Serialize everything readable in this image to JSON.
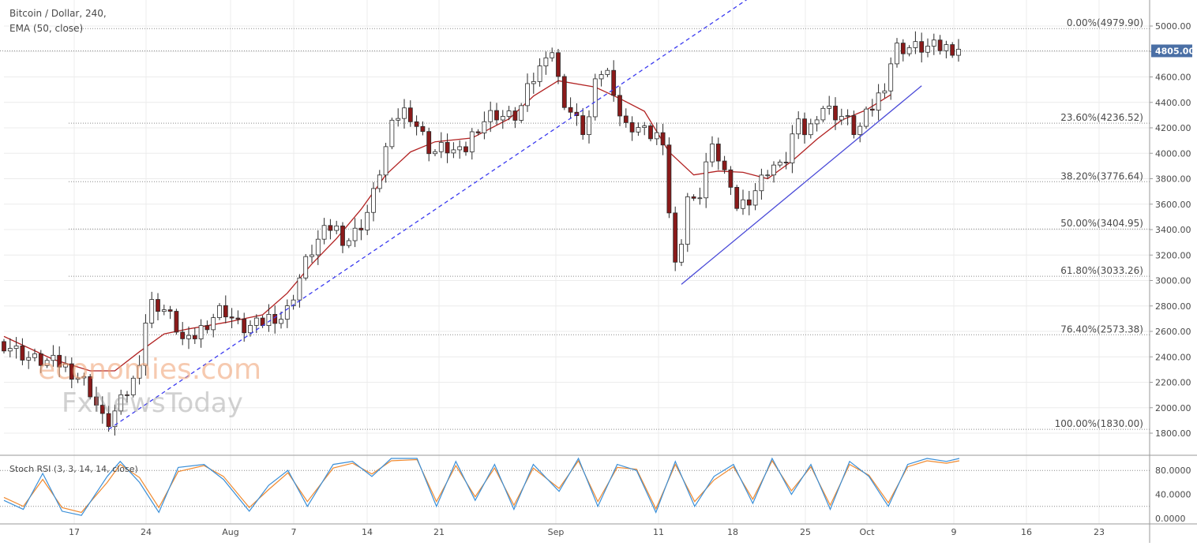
{
  "header": {
    "title": "Bitcoin / Dollar, 240,",
    "indicator": "EMA (50, close)"
  },
  "stoch_label": "Stoch RSI (3, 3, 14, 14, close)",
  "watermark": {
    "line1": "economies.com",
    "line2": "FxNewsToday"
  },
  "chart_data": {
    "type": "candlestick",
    "symbol": "Bitcoin / Dollar",
    "interval": "240",
    "price_axis": {
      "ticks": [
        5000,
        4800,
        4600,
        4400,
        4200,
        4000,
        3800,
        3600,
        3400,
        3200,
        3000,
        2800,
        2600,
        2400,
        2200,
        2000,
        1800
      ],
      "labels": [
        "5000.00",
        "4800.00",
        "4600.00",
        "4400.00",
        "4200.00",
        "4000.00",
        "3800.00",
        "3600.00",
        "3400.00",
        "3200.00",
        "3000.00",
        "2800.00",
        "2600.00",
        "2400.00",
        "2200.00",
        "2000.00",
        "1800.00"
      ],
      "range": [
        1700,
        5110
      ]
    },
    "time_axis": {
      "labels": [
        "17",
        "24",
        "Aug",
        "7",
        "14",
        "21",
        "Sep",
        "11",
        "18",
        "25",
        "Oct",
        "9",
        "16",
        "23"
      ]
    },
    "last_price": {
      "value": 4805,
      "label": "4805.00"
    },
    "fibonacci": [
      {
        "label": "0.00%(4979.90)",
        "price": 4979.9
      },
      {
        "label": "23.60%(4236.52)",
        "price": 4236.52
      },
      {
        "label": "38.20%(3776.64)",
        "price": 3776.64
      },
      {
        "label": "50.00%(3404.95)",
        "price": 3404.95
      },
      {
        "label": "61.80%(3033.26)",
        "price": 3033.26
      },
      {
        "label": "76.40%(2573.38)",
        "price": 2573.38
      },
      {
        "label": "100.00%(1830.00)",
        "price": 1830.0
      }
    ],
    "price_path": [
      [
        0,
        2520
      ],
      [
        5,
        2380
      ],
      [
        10,
        2340
      ],
      [
        14,
        2190
      ],
      [
        17,
        1850
      ],
      [
        19,
        2000
      ],
      [
        22,
        2250
      ],
      [
        24,
        2820
      ],
      [
        26,
        2800
      ],
      [
        28,
        2680
      ],
      [
        30,
        2480
      ],
      [
        33,
        2650
      ],
      [
        36,
        2790
      ],
      [
        39,
        2620
      ],
      [
        42,
        2650
      ],
      [
        44,
        2730
      ],
      [
        46,
        2700
      ],
      [
        48,
        2960
      ],
      [
        50,
        3200
      ],
      [
        52,
        3350
      ],
      [
        54,
        3440
      ],
      [
        56,
        3300
      ],
      [
        58,
        3400
      ],
      [
        60,
        3580
      ],
      [
        62,
        3960
      ],
      [
        64,
        4280
      ],
      [
        66,
        4350
      ],
      [
        68,
        4180
      ],
      [
        70,
        4000
      ],
      [
        72,
        4050
      ],
      [
        75,
        3980
      ],
      [
        77,
        4200
      ],
      [
        80,
        4320
      ],
      [
        82,
        4280
      ],
      [
        84,
        4300
      ],
      [
        86,
        4550
      ],
      [
        88,
        4700
      ],
      [
        89,
        4920
      ],
      [
        91,
        4450
      ],
      [
        93,
        4280
      ],
      [
        95,
        4150
      ],
      [
        97,
        4650
      ],
      [
        99,
        4620
      ],
      [
        101,
        4200
      ],
      [
        103,
        4220
      ],
      [
        105,
        4150
      ],
      [
        107,
        4150
      ],
      [
        108,
        3860
      ],
      [
        109,
        3250
      ],
      [
        110,
        2990
      ],
      [
        111,
        3700
      ],
      [
        113,
        3580
      ],
      [
        115,
        4050
      ],
      [
        117,
        3950
      ],
      [
        119,
        3580
      ],
      [
        121,
        3620
      ],
      [
        123,
        3750
      ],
      [
        125,
        3920
      ],
      [
        127,
        3870
      ],
      [
        129,
        4230
      ],
      [
        131,
        4150
      ],
      [
        133,
        4380
      ],
      [
        135,
        4320
      ],
      [
        137,
        4280
      ],
      [
        139,
        4150
      ],
      [
        140,
        4250
      ],
      [
        142,
        4400
      ],
      [
        144,
        4600
      ],
      [
        145,
        4830
      ]
    ],
    "ema50_path": [
      [
        0,
        2560
      ],
      [
        8,
        2380
      ],
      [
        14,
        2290
      ],
      [
        18,
        2290
      ],
      [
        22,
        2440
      ],
      [
        26,
        2580
      ],
      [
        30,
        2620
      ],
      [
        36,
        2670
      ],
      [
        42,
        2730
      ],
      [
        46,
        2900
      ],
      [
        50,
        3130
      ],
      [
        54,
        3330
      ],
      [
        58,
        3560
      ],
      [
        62,
        3830
      ],
      [
        66,
        4010
      ],
      [
        70,
        4090
      ],
      [
        76,
        4120
      ],
      [
        82,
        4270
      ],
      [
        86,
        4450
      ],
      [
        90,
        4570
      ],
      [
        96,
        4520
      ],
      [
        100,
        4430
      ],
      [
        104,
        4330
      ],
      [
        108,
        4010
      ],
      [
        112,
        3830
      ],
      [
        116,
        3860
      ],
      [
        120,
        3850
      ],
      [
        124,
        3800
      ],
      [
        128,
        3940
      ],
      [
        132,
        4110
      ],
      [
        136,
        4260
      ],
      [
        140,
        4340
      ],
      [
        144,
        4460
      ]
    ],
    "trendlines": [
      {
        "style": "dashed",
        "from": [
          17,
          1830
        ],
        "to": [
          121,
          5220
        ]
      },
      {
        "style": "solid",
        "from": [
          110,
          2970
        ],
        "to": [
          149,
          4530
        ]
      }
    ],
    "stoch_rsi": {
      "params": "3, 3, 14, 14, close",
      "ticks": [
        80,
        40,
        0
      ],
      "tick_labels": [
        "80.0000",
        "40.0000",
        "0.0000"
      ],
      "k_series": [
        [
          0,
          30
        ],
        [
          3,
          15
        ],
        [
          6,
          75
        ],
        [
          9,
          12
        ],
        [
          12,
          5
        ],
        [
          16,
          70
        ],
        [
          18,
          95
        ],
        [
          21,
          60
        ],
        [
          24,
          10
        ],
        [
          27,
          85
        ],
        [
          31,
          90
        ],
        [
          34,
          65
        ],
        [
          38,
          12
        ],
        [
          41,
          55
        ],
        [
          44,
          80
        ],
        [
          47,
          20
        ],
        [
          51,
          90
        ],
        [
          54,
          95
        ],
        [
          57,
          70
        ],
        [
          60,
          100
        ],
        [
          64,
          100
        ],
        [
          67,
          20
        ],
        [
          70,
          95
        ],
        [
          73,
          30
        ],
        [
          76,
          90
        ],
        [
          79,
          15
        ],
        [
          82,
          90
        ],
        [
          86,
          45
        ],
        [
          89,
          100
        ],
        [
          92,
          20
        ],
        [
          95,
          90
        ],
        [
          98,
          80
        ],
        [
          101,
          10
        ],
        [
          104,
          95
        ],
        [
          107,
          20
        ],
        [
          110,
          70
        ],
        [
          113,
          90
        ],
        [
          116,
          25
        ],
        [
          119,
          100
        ],
        [
          122,
          40
        ],
        [
          125,
          90
        ],
        [
          128,
          15
        ],
        [
          131,
          95
        ],
        [
          134,
          70
        ],
        [
          137,
          20
        ],
        [
          140,
          90
        ],
        [
          143,
          100
        ],
        [
          146,
          95
        ],
        [
          148,
          100
        ]
      ],
      "d_series": [
        [
          0,
          35
        ],
        [
          3,
          20
        ],
        [
          6,
          65
        ],
        [
          9,
          18
        ],
        [
          12,
          10
        ],
        [
          16,
          60
        ],
        [
          18,
          90
        ],
        [
          21,
          68
        ],
        [
          24,
          18
        ],
        [
          27,
          78
        ],
        [
          31,
          88
        ],
        [
          34,
          70
        ],
        [
          38,
          18
        ],
        [
          41,
          48
        ],
        [
          44,
          76
        ],
        [
          47,
          28
        ],
        [
          51,
          84
        ],
        [
          54,
          92
        ],
        [
          57,
          74
        ],
        [
          60,
          96
        ],
        [
          64,
          98
        ],
        [
          67,
          28
        ],
        [
          70,
          88
        ],
        [
          73,
          36
        ],
        [
          76,
          84
        ],
        [
          79,
          22
        ],
        [
          82,
          84
        ],
        [
          86,
          50
        ],
        [
          89,
          96
        ],
        [
          92,
          28
        ],
        [
          95,
          85
        ],
        [
          98,
          82
        ],
        [
          101,
          16
        ],
        [
          104,
          90
        ],
        [
          107,
          28
        ],
        [
          110,
          64
        ],
        [
          113,
          86
        ],
        [
          116,
          32
        ],
        [
          119,
          96
        ],
        [
          122,
          46
        ],
        [
          125,
          86
        ],
        [
          128,
          22
        ],
        [
          131,
          90
        ],
        [
          134,
          72
        ],
        [
          137,
          26
        ],
        [
          140,
          86
        ],
        [
          143,
          96
        ],
        [
          146,
          92
        ],
        [
          148,
          96
        ]
      ]
    },
    "colors": {
      "up_candle": "#ffffff",
      "down_candle": "#8b1a1a",
      "ema": "#b22222",
      "dashed_trend": "#3a3af0",
      "solid_trend": "#4a4ad8",
      "stoch_k": "#3a8fd8",
      "stoch_d": "#f08a30",
      "price_tag": "#4a6fa5",
      "watermark_1": "#f0a070",
      "watermark_2": "#9a9a9a"
    }
  }
}
